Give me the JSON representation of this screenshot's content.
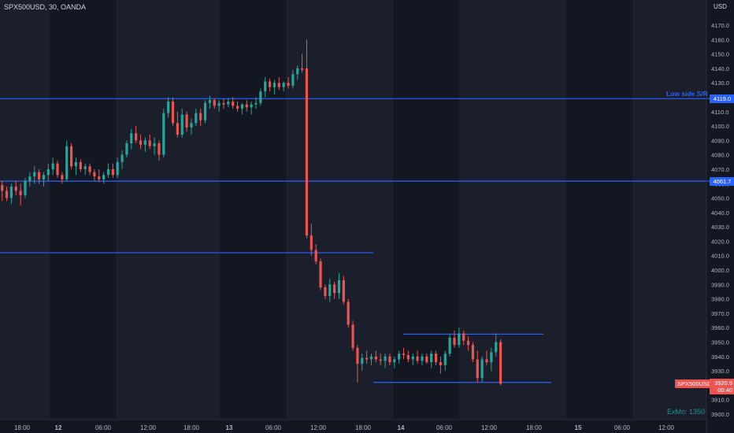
{
  "header": {
    "title": "SPX500USD, 30, OANDA",
    "currency": "USD"
  },
  "watermark": "ExMo: 1350",
  "chart_data": {
    "type": "candlestick",
    "symbol": "SPX500USD",
    "interval": "30",
    "source": "OANDA",
    "y_ticks": [
      3900,
      3910,
      3920,
      3930,
      3940,
      3950,
      3960,
      3970,
      3980,
      3990,
      4000,
      4010,
      4020,
      4030,
      4040,
      4050,
      4060,
      4070,
      4080,
      4090,
      4100,
      4110,
      4120,
      4130,
      4140,
      4150,
      4160,
      4170
    ],
    "y_tick_labels": [
      "3900.0",
      "3910.0",
      "3920.0",
      "3930.0",
      "3940.0",
      "3950.0",
      "3960.0",
      "3970.0",
      "3980.0",
      "3990.0",
      "4000.0",
      "4010.0",
      "4020.0",
      "4030.0",
      "4040.0",
      "4050.0",
      "4060.0",
      "4070.0",
      "4080.0",
      "4090.0",
      "4100.0",
      "4110.0",
      "4120.0",
      "4130.0",
      "4140.0",
      "4150.0",
      "4160.0",
      "4170.0"
    ],
    "ylim": [
      3897,
      4180
    ],
    "x_labels": [
      "18:00",
      "12",
      "06:00",
      "12:00",
      "18:00",
      "13",
      "06:00",
      "12:00",
      "18:00",
      "14",
      "06:00",
      "12:00",
      "18:00",
      "15",
      "06:00",
      "12:00"
    ],
    "x_bold": [
      false,
      true,
      false,
      false,
      false,
      true,
      false,
      false,
      false,
      true,
      false,
      false,
      false,
      true,
      false,
      false
    ],
    "last_price": "3920.9",
    "countdown": "00:40",
    "symbol_label": "SPX500USD",
    "colors": {
      "up": "#26a69a",
      "down": "#ef5350",
      "line": "#2962ff",
      "bg": "#131722",
      "session": "#1b1f2b"
    },
    "levels": [
      {
        "price": 4119.0,
        "label": "4119.0",
        "annotation": "Low side S/R"
      },
      {
        "price": 4061.7,
        "label": "4061.7",
        "annotation": ""
      },
      {
        "price": 4012.0,
        "label": "",
        "annotation": ""
      },
      {
        "price": 3955.5,
        "label": "",
        "annotation": ""
      },
      {
        "price": 3922.0,
        "label": "",
        "annotation": ""
      }
    ],
    "candles": [
      [
        4059,
        4062,
        4048,
        4055
      ],
      [
        4055,
        4058,
        4048,
        4050
      ],
      [
        4050,
        4060,
        4046,
        4058
      ],
      [
        4058,
        4062,
        4052,
        4055
      ],
      [
        4055,
        4060,
        4045,
        4052
      ],
      [
        4052,
        4064,
        4050,
        4062
      ],
      [
        4062,
        4068,
        4058,
        4065
      ],
      [
        4065,
        4072,
        4060,
        4068
      ],
      [
        4068,
        4070,
        4060,
        4063
      ],
      [
        4063,
        4068,
        4058,
        4066
      ],
      [
        4066,
        4074,
        4062,
        4070
      ],
      [
        4070,
        4078,
        4066,
        4074
      ],
      [
        4074,
        4076,
        4064,
        4066
      ],
      [
        4066,
        4068,
        4060,
        4063
      ],
      [
        4063,
        4090,
        4062,
        4086
      ],
      [
        4086,
        4088,
        4070,
        4072
      ],
      [
        4072,
        4078,
        4066,
        4075
      ],
      [
        4075,
        4077,
        4068,
        4070
      ],
      [
        4070,
        4074,
        4066,
        4072
      ],
      [
        4072,
        4074,
        4066,
        4068
      ],
      [
        4068,
        4070,
        4062,
        4065
      ],
      [
        4065,
        4070,
        4061,
        4063
      ],
      [
        4063,
        4068,
        4060,
        4066
      ],
      [
        4066,
        4074,
        4064,
        4070
      ],
      [
        4070,
        4074,
        4064,
        4066
      ],
      [
        4066,
        4078,
        4064,
        4075
      ],
      [
        4075,
        4083,
        4070,
        4080
      ],
      [
        4080,
        4090,
        4078,
        4088
      ],
      [
        4088,
        4098,
        4084,
        4095
      ],
      [
        4095,
        4100,
        4088,
        4090
      ],
      [
        4090,
        4094,
        4084,
        4087
      ],
      [
        4087,
        4092,
        4082,
        4090
      ],
      [
        4090,
        4094,
        4084,
        4086
      ],
      [
        4086,
        4092,
        4080,
        4088
      ],
      [
        4088,
        4090,
        4076,
        4080
      ],
      [
        4080,
        4112,
        4078,
        4109
      ],
      [
        4109,
        4120,
        4106,
        4117
      ],
      [
        4117,
        4120,
        4100,
        4102
      ],
      [
        4102,
        4110,
        4092,
        4094
      ],
      [
        4094,
        4112,
        4092,
        4108
      ],
      [
        4108,
        4110,
        4096,
        4099
      ],
      [
        4099,
        4105,
        4094,
        4102
      ],
      [
        4102,
        4112,
        4100,
        4109
      ],
      [
        4109,
        4112,
        4100,
        4104
      ],
      [
        4104,
        4118,
        4102,
        4116
      ],
      [
        4116,
        4121,
        4112,
        4118
      ],
      [
        4118,
        4119,
        4112,
        4114
      ],
      [
        4114,
        4118,
        4110,
        4116
      ],
      [
        4116,
        4119,
        4112,
        4115
      ],
      [
        4115,
        4119,
        4113,
        4117
      ],
      [
        4117,
        4120,
        4112,
        4114
      ],
      [
        4114,
        4117,
        4110,
        4112
      ],
      [
        4112,
        4116,
        4108,
        4115
      ],
      [
        4115,
        4118,
        4110,
        4113
      ],
      [
        4113,
        4117,
        4108,
        4115
      ],
      [
        4115,
        4120,
        4112,
        4116
      ],
      [
        4116,
        4126,
        4114,
        4124
      ],
      [
        4124,
        4134,
        4120,
        4131
      ],
      [
        4131,
        4133,
        4124,
        4127
      ],
      [
        4127,
        4132,
        4122,
        4130
      ],
      [
        4130,
        4134,
        4125,
        4127
      ],
      [
        4127,
        4131,
        4124,
        4130
      ],
      [
        4130,
        4134,
        4126,
        4128
      ],
      [
        4128,
        4139,
        4126,
        4136
      ],
      [
        4136,
        4142,
        4132,
        4140
      ],
      [
        4140,
        4150,
        4137,
        4139
      ],
      [
        4140,
        4160,
        4022,
        4024
      ],
      [
        4024,
        4032,
        4010,
        4014
      ],
      [
        4014,
        4018,
        4004,
        4006
      ],
      [
        4006,
        4008,
        3986,
        3988
      ],
      [
        3988,
        3990,
        3980,
        3982
      ],
      [
        3982,
        3994,
        3978,
        3990
      ],
      [
        3990,
        3992,
        3980,
        3984
      ],
      [
        3984,
        3998,
        3980,
        3993
      ],
      [
        3993,
        3996,
        3976,
        3978
      ],
      [
        3978,
        3980,
        3960,
        3962
      ],
      [
        3962,
        3965,
        3944,
        3946
      ],
      [
        3946,
        3948,
        3922,
        3935
      ],
      [
        3935,
        3942,
        3930,
        3939
      ],
      [
        3939,
        3944,
        3935,
        3938
      ],
      [
        3938,
        3942,
        3934,
        3940
      ],
      [
        3940,
        3944,
        3936,
        3938
      ],
      [
        3938,
        3942,
        3934,
        3937
      ],
      [
        3937,
        3942,
        3932,
        3940
      ],
      [
        3940,
        3942,
        3934,
        3936
      ],
      [
        3936,
        3940,
        3932,
        3938
      ],
      [
        3938,
        3944,
        3935,
        3942
      ],
      [
        3942,
        3946,
        3938,
        3941
      ],
      [
        3941,
        3944,
        3936,
        3938
      ],
      [
        3938,
        3942,
        3934,
        3940
      ],
      [
        3940,
        3944,
        3935,
        3937
      ],
      [
        3937,
        3942,
        3934,
        3940
      ],
      [
        3940,
        3942,
        3935,
        3936
      ],
      [
        3936,
        3944,
        3932,
        3942
      ],
      [
        3942,
        3944,
        3934,
        3936
      ],
      [
        3936,
        3940,
        3928,
        3934
      ],
      [
        3934,
        3944,
        3930,
        3942
      ],
      [
        3942,
        3956,
        3940,
        3953
      ],
      [
        3953,
        3958,
        3946,
        3948
      ],
      [
        3948,
        3960,
        3946,
        3956
      ],
      [
        3956,
        3958,
        3948,
        3951
      ],
      [
        3951,
        3954,
        3944,
        3948
      ],
      [
        3948,
        3950,
        3936,
        3938
      ],
      [
        3938,
        3944,
        3922,
        3925
      ],
      [
        3925,
        3940,
        3922,
        3938
      ],
      [
        3938,
        3944,
        3934,
        3936
      ],
      [
        3936,
        3946,
        3930,
        3943
      ],
      [
        3943,
        3956,
        3940,
        3950
      ],
      [
        3950,
        3952,
        3920,
        3921
      ]
    ]
  }
}
